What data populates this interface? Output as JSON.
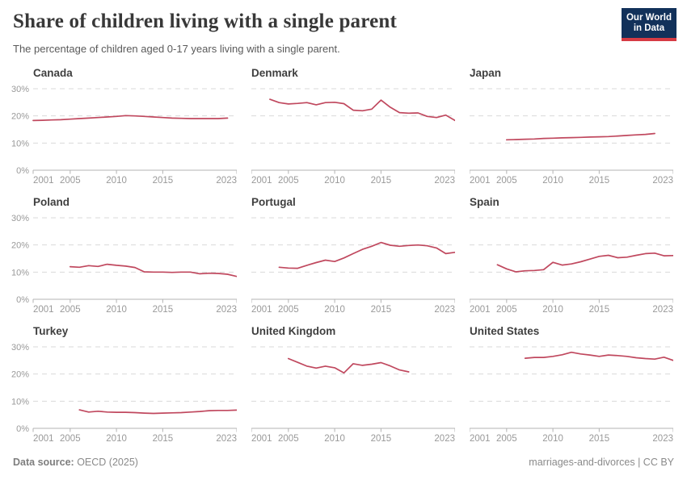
{
  "header": {
    "title": "Share of children living with a single parent",
    "subtitle": "The percentage of children aged 0-17 years living with a single parent.",
    "logo": {
      "line1": "Our World",
      "line2": "in Data",
      "bg_color": "#12315a",
      "accent_color": "#d63b43"
    }
  },
  "footer": {
    "source_label": "Data source:",
    "source_value": " OECD (2025)",
    "note": "marriages-and-divorces | CC BY"
  },
  "chart_data": {
    "type": "line",
    "layout": "small-multiples-3x3",
    "xlim": [
      2001,
      2023
    ],
    "ylim": [
      0,
      30
    ],
    "xticks": [
      2001,
      2005,
      2010,
      2015,
      2023
    ],
    "yticks": [
      0,
      10,
      20,
      30
    ],
    "ytick_suffix": "%",
    "grid": "dashed-horizontal",
    "legend": "none",
    "colors": {
      "line": "#c0485e",
      "grid": "#d9d9d9",
      "axis": "#b3b3b3",
      "tick_label": "#999999"
    },
    "panels": [
      {
        "title": "Canada",
        "start_year": 2001,
        "values": [
          18.3,
          18.4,
          18.5,
          18.6,
          18.8,
          19.0,
          19.2,
          19.4,
          19.6,
          19.8,
          20.1,
          20.0,
          19.8,
          19.6,
          19.4,
          19.2,
          19.1,
          19.0,
          19.0,
          19.0,
          19.0,
          19.2
        ]
      },
      {
        "title": "Denmark",
        "start_year": 2003,
        "values": [
          26.1,
          24.9,
          24.4,
          24.6,
          24.9,
          24.1,
          24.9,
          25.0,
          24.5,
          22.1,
          21.9,
          22.5,
          25.8,
          23.2,
          21.2,
          21.0,
          21.1,
          19.8,
          19.4,
          20.3,
          18.3
        ]
      },
      {
        "title": "Japan",
        "start_year": 2005,
        "values": [
          11.2,
          11.3,
          11.4,
          11.5,
          11.7,
          11.8,
          11.9,
          12.0,
          12.1,
          12.2,
          12.3,
          12.4,
          12.6,
          12.8,
          13.0,
          13.2,
          13.5
        ]
      },
      {
        "title": "Poland",
        "start_year": 2005,
        "values": [
          12.0,
          11.8,
          12.4,
          12.1,
          12.9,
          12.5,
          12.2,
          11.7,
          10.1,
          10.0,
          10.0,
          9.9,
          10.0,
          10.0,
          9.4,
          9.6,
          9.5,
          9.2,
          8.4
        ]
      },
      {
        "title": "Portugal",
        "start_year": 2004,
        "values": [
          11.8,
          11.5,
          11.4,
          12.5,
          13.5,
          14.4,
          13.9,
          15.2,
          16.8,
          18.4,
          19.5,
          20.9,
          19.9,
          19.5,
          19.8,
          20.0,
          19.7,
          18.9,
          16.8,
          17.3
        ]
      },
      {
        "title": "Spain",
        "start_year": 2004,
        "values": [
          12.7,
          11.2,
          10.1,
          10.5,
          10.6,
          10.9,
          13.6,
          12.6,
          13.0,
          13.8,
          14.8,
          15.8,
          16.2,
          15.3,
          15.5,
          16.2,
          16.8,
          17.0,
          16.0,
          16.1
        ]
      },
      {
        "title": "Turkey",
        "start_year": 2006,
        "values": [
          6.8,
          6.0,
          6.3,
          6.0,
          5.9,
          5.9,
          5.8,
          5.6,
          5.5,
          5.6,
          5.7,
          5.8,
          6.0,
          6.2,
          6.5,
          6.6,
          6.6,
          6.7
        ]
      },
      {
        "title": "United Kingdom",
        "start_year": 2005,
        "values": [
          25.7,
          24.3,
          22.9,
          22.2,
          22.9,
          22.3,
          20.4,
          23.8,
          23.2,
          23.6,
          24.2,
          23.0,
          21.5,
          20.8
        ]
      },
      {
        "title": "United States",
        "start_year": 2007,
        "values": [
          25.8,
          26.1,
          26.1,
          26.5,
          27.1,
          28.0,
          27.4,
          27.0,
          26.5,
          27.0,
          26.8,
          26.5,
          26.0,
          25.7,
          25.5,
          26.2,
          25.0
        ]
      }
    ]
  }
}
